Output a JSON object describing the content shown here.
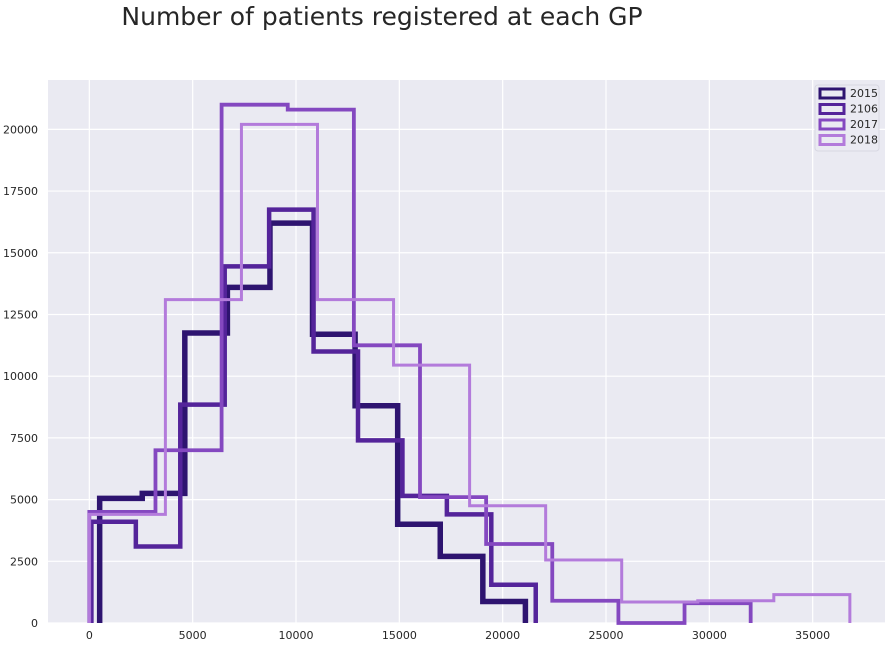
{
  "chart_data": {
    "type": "histogram-step",
    "title": "Number of patients registered at each GP",
    "xlabel": "",
    "ylabel": "",
    "xlim": [
      -2000,
      38500
    ],
    "ylim": [
      0,
      22000
    ],
    "xticks": [
      0,
      5000,
      10000,
      15000,
      20000,
      25000,
      30000,
      35000
    ],
    "yticks": [
      0,
      2500,
      5000,
      7500,
      10000,
      12500,
      15000,
      17500,
      20000
    ],
    "xtick_labels": [
      "0",
      "5000",
      "10000",
      "15000",
      "20000",
      "25000",
      "30000",
      "35000"
    ],
    "ytick_labels": [
      "0",
      "2500",
      "5000",
      "7500",
      "10000",
      "12500",
      "15000",
      "17500",
      "20000"
    ],
    "grid": true,
    "legend_position": "top-right",
    "series": [
      {
        "name": "2015",
        "color": "#2e1470",
        "edges": [
          500,
          2560,
          4620,
          6680,
          8740,
          10800,
          12860,
          14920,
          16980,
          19040,
          21100
        ],
        "counts": [
          5050,
          5250,
          11750,
          13600,
          16200,
          11700,
          8800,
          4000,
          2700,
          870
        ]
      },
      {
        "name": "2106",
        "color": "#54249a",
        "edges": [
          100,
          2250,
          4400,
          6550,
          8700,
          10850,
          13000,
          15150,
          17300,
          19450,
          21600
        ],
        "counts": [
          4100,
          3100,
          8850,
          14450,
          16750,
          11000,
          7400,
          5150,
          4400,
          1550
        ]
      },
      {
        "name": "2017",
        "color": "#8448c0",
        "edges": [
          0,
          3200,
          6400,
          9600,
          12800,
          16000,
          19200,
          22400,
          25600,
          28800,
          32000
        ],
        "counts": [
          4500,
          7000,
          21000,
          20800,
          11250,
          5100,
          3200,
          900,
          0,
          800
        ]
      },
      {
        "name": "2018",
        "color": "#b37bdb",
        "edges": [
          0,
          3680,
          7360,
          11040,
          14720,
          18400,
          22080,
          25760,
          29440,
          33120,
          36800
        ],
        "counts": [
          4400,
          13100,
          20200,
          13100,
          10450,
          4750,
          2550,
          850,
          900,
          1150
        ]
      }
    ]
  }
}
